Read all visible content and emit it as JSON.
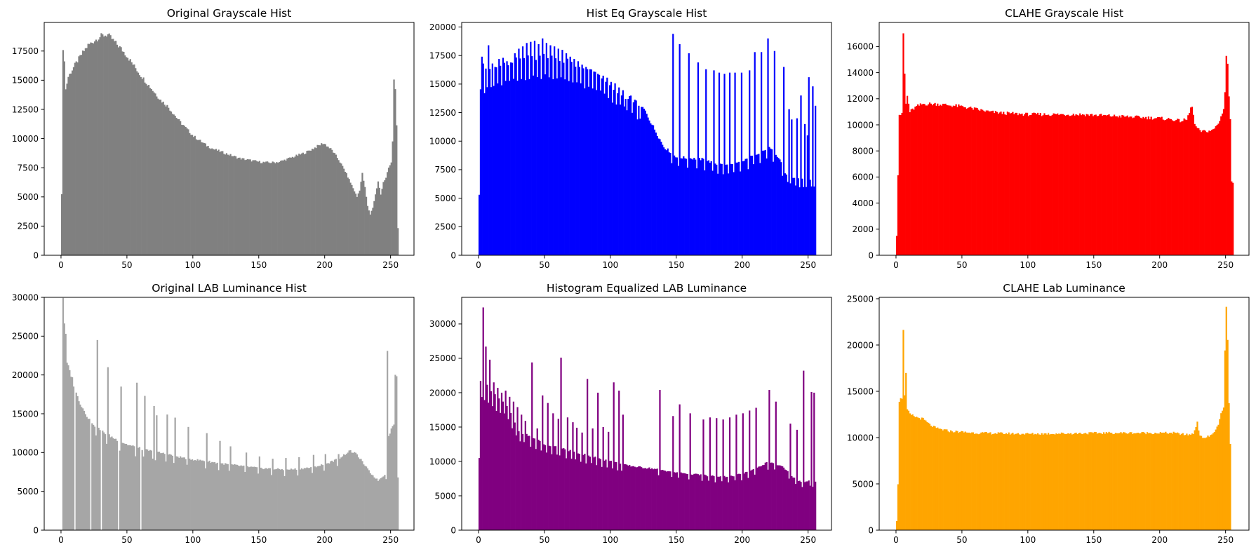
{
  "chart_data": [
    {
      "type": "bar",
      "title": "Original Grayscale Hist",
      "color": "#808080",
      "xlim": [
        -12.75,
        267.75
      ],
      "ylim": [
        0,
        19950
      ],
      "xticks": [
        0,
        50,
        100,
        150,
        200,
        250
      ],
      "yticks": [
        0,
        2500,
        5000,
        7500,
        10000,
        12500,
        15000,
        17500
      ],
      "x_anchors": [
        0,
        5300,
        1,
        17400,
        2,
        16800,
        3,
        14200,
        5,
        15300,
        10,
        16300,
        15,
        17200,
        20,
        18000,
        25,
        18400,
        30,
        18800,
        35,
        18900,
        40,
        18300,
        45,
        17700,
        50,
        17000,
        55,
        16200,
        60,
        15400,
        65,
        14700,
        70,
        14000,
        75,
        13300,
        80,
        12800,
        85,
        12100,
        90,
        11400,
        95,
        10800,
        100,
        10200,
        105,
        9800,
        110,
        9400,
        115,
        9100,
        120,
        8900,
        125,
        8700,
        130,
        8500,
        135,
        8300,
        140,
        8200,
        145,
        8100,
        150,
        8000,
        155,
        7950,
        160,
        7950,
        165,
        8000,
        170,
        8200,
        175,
        8400,
        180,
        8600,
        185,
        8800,
        190,
        9100,
        195,
        9400,
        198,
        9600,
        200,
        9500,
        205,
        9000,
        210,
        8200,
        215,
        7200,
        220,
        6000,
        224,
        5000,
        226,
        5600,
        228,
        7000,
        230,
        5800,
        232,
        4200,
        234,
        3500,
        236,
        4100,
        238,
        5200,
        240,
        6300,
        242,
        5200,
        244,
        6300,
        246,
        6600,
        248,
        7500,
        250,
        7900,
        251,
        9800,
        252,
        15000,
        253,
        14400,
        254,
        11000,
        255,
        2300
      ],
      "spikes": []
    },
    {
      "type": "bar",
      "title": "Hist Eq Grayscale Hist",
      "color": "#0000ff",
      "xlim": [
        -12.75,
        267.75
      ],
      "ylim": [
        0,
        20400
      ],
      "xticks": [
        0,
        50,
        100,
        150,
        200,
        250
      ],
      "yticks": [
        0,
        2500,
        5000,
        7500,
        10000,
        12500,
        15000,
        17500,
        20000
      ],
      "x_anchors": [
        0,
        16000,
        30,
        17200,
        50,
        17400,
        70,
        16900,
        90,
        16000,
        110,
        14300,
        125,
        12800,
        140,
        9500,
        150,
        8600,
        160,
        8500,
        170,
        8400,
        180,
        8000,
        190,
        7900,
        200,
        8200,
        210,
        8900,
        220,
        9400,
        228,
        8400,
        232,
        7200,
        240,
        6700,
        255,
        6700
      ],
      "spikes": [
        [
          0,
          5300
        ],
        [
          2,
          17400
        ],
        [
          3,
          16800
        ],
        [
          4,
          14200
        ],
        [
          7,
          18400
        ],
        [
          10,
          16800
        ],
        [
          12,
          16500
        ],
        [
          15,
          17200
        ],
        [
          18,
          17300
        ],
        [
          21,
          17000
        ],
        [
          24,
          16900
        ],
        [
          27,
          17700
        ],
        [
          30,
          18100
        ],
        [
          33,
          18300
        ],
        [
          36,
          18600
        ],
        [
          39,
          18700
        ],
        [
          42,
          18800
        ],
        [
          45,
          18500
        ],
        [
          48,
          19000
        ],
        [
          51,
          18600
        ],
        [
          54,
          18400
        ],
        [
          57,
          18300
        ],
        [
          60,
          18100
        ],
        [
          63,
          18000
        ],
        [
          66,
          17700
        ],
        [
          69,
          17400
        ],
        [
          72,
          17200
        ],
        [
          75,
          17000
        ],
        [
          78,
          16700
        ],
        [
          81,
          16500
        ],
        [
          84,
          16300
        ],
        [
          87,
          16100
        ],
        [
          90,
          15900
        ],
        [
          93,
          15500
        ],
        [
          96,
          15200
        ],
        [
          99,
          14900
        ],
        [
          102,
          14500
        ],
        [
          105,
          14200
        ],
        [
          108,
          14000
        ],
        [
          111,
          13700
        ],
        [
          113,
          13700
        ],
        [
          117,
          13400
        ],
        [
          121,
          13100
        ],
        [
          123,
          13000
        ],
        [
          147,
          19400
        ],
        [
          152,
          18500
        ],
        [
          159,
          17700
        ],
        [
          166,
          16900
        ],
        [
          172,
          16300
        ],
        [
          178,
          16200
        ],
        [
          182,
          16000
        ],
        [
          186,
          15900
        ],
        [
          190,
          16000
        ],
        [
          194,
          16000
        ],
        [
          199,
          16000
        ],
        [
          205,
          16200
        ],
        [
          209,
          17800
        ],
        [
          214,
          17800
        ],
        [
          219,
          19000
        ],
        [
          224,
          17900
        ],
        [
          231,
          16500
        ],
        [
          235,
          12800
        ],
        [
          237,
          11900
        ],
        [
          241,
          12000
        ],
        [
          244,
          14000
        ],
        [
          247,
          11500
        ],
        [
          249,
          10500
        ],
        [
          250,
          15600
        ],
        [
          253,
          14800
        ],
        [
          255,
          13100
        ]
      ]
    },
    {
      "type": "bar",
      "title": "CLAHE Grayscale Hist",
      "color": "#ff0000",
      "xlim": [
        -12.75,
        267.75
      ],
      "ylim": [
        0,
        17850
      ],
      "xticks": [
        0,
        50,
        100,
        150,
        200,
        250
      ],
      "yticks": [
        0,
        2000,
        4000,
        6000,
        8000,
        10000,
        12000,
        14000,
        16000
      ],
      "x_anchors": [
        0,
        1500,
        1,
        6200,
        2,
        10800,
        4,
        10800,
        5,
        17000,
        6,
        13900,
        7,
        11600,
        8,
        12200,
        10,
        11000,
        15,
        11400,
        20,
        11600,
        30,
        11600,
        40,
        11500,
        50,
        11400,
        60,
        11200,
        70,
        11000,
        80,
        10900,
        100,
        10800,
        120,
        10800,
        140,
        10800,
        160,
        10700,
        180,
        10600,
        200,
        10500,
        210,
        10400,
        215,
        10300,
        220,
        10400,
        224,
        11500,
        226,
        10000,
        230,
        9500,
        235,
        9500,
        240,
        9600,
        244,
        10100,
        246,
        10600,
        248,
        11300,
        249,
        12500,
        250,
        15300,
        251,
        14700,
        252,
        12100,
        253,
        10500,
        254,
        5600,
        255,
        5600
      ],
      "spikes": []
    },
    {
      "type": "bar",
      "title": "Original LAB Luminance Hist",
      "color": "#a6a6a6",
      "xlim": [
        -12.75,
        267.75
      ],
      "ylim": [
        0,
        30000
      ],
      "xticks": [
        0,
        50,
        100,
        150,
        200,
        250
      ],
      "yticks": [
        0,
        5000,
        10000,
        15000,
        20000,
        25000,
        30000
      ],
      "x_anchors": [
        0,
        10500,
        1,
        30000,
        2,
        26800,
        3,
        25000,
        4,
        21500,
        6,
        20500,
        8,
        19500,
        10,
        18000,
        15,
        16000,
        20,
        14500,
        25,
        13500,
        30,
        12800,
        35,
        12300,
        40,
        11800,
        50,
        11000,
        60,
        10500,
        70,
        10100,
        80,
        9800,
        90,
        9400,
        100,
        9100,
        110,
        8900,
        120,
        8600,
        130,
        8400,
        140,
        8200,
        150,
        8000,
        160,
        7900,
        170,
        7800,
        180,
        7900,
        190,
        8100,
        200,
        8500,
        210,
        9200,
        215,
        9800,
        218,
        10200,
        222,
        10000,
        226,
        9300,
        230,
        8300,
        235,
        7200,
        240,
        6400,
        244,
        7000,
        246,
        7400,
        248,
        12200,
        250,
        13000,
        252,
        13800,
        253,
        19800,
        254,
        20000,
        255,
        6700
      ],
      "spikes": [
        [
          27,
          24500
        ],
        [
          35,
          21000
        ],
        [
          45,
          18500
        ],
        [
          57,
          19000
        ],
        [
          63,
          17300
        ],
        [
          70,
          16000
        ],
        [
          72,
          14800
        ],
        [
          80,
          14900
        ],
        [
          86,
          14500
        ],
        [
          96,
          13300
        ],
        [
          110,
          12500
        ],
        [
          120,
          11500
        ],
        [
          128,
          10800
        ],
        [
          140,
          10000
        ],
        [
          150,
          9500
        ],
        [
          160,
          9200
        ],
        [
          170,
          9300
        ],
        [
          180,
          9400
        ],
        [
          191,
          9700
        ],
        [
          200,
          9800
        ],
        [
          210,
          9800
        ],
        [
          247,
          23100
        ]
      ],
      "gaps": [
        [
          0,
          1
        ],
        [
          10,
          11
        ],
        [
          22,
          23
        ],
        [
          30,
          31
        ],
        [
          43,
          44
        ],
        [
          60,
          61
        ]
      ]
    },
    {
      "type": "bar",
      "title": "Histogram Equalized LAB Luminance",
      "color": "#800080",
      "xlim": [
        -12.75,
        267.75
      ],
      "ylim": [
        0,
        33870
      ],
      "xticks": [
        0,
        50,
        100,
        150,
        200,
        250
      ],
      "yticks": [
        0,
        5000,
        10000,
        15000,
        20000,
        25000,
        30000
      ],
      "x_anchors": [
        3,
        21500,
        10,
        20000,
        20,
        18500,
        30,
        14500,
        40,
        13500,
        50,
        12500,
        60,
        12000,
        70,
        11500,
        80,
        11000,
        90,
        10500,
        100,
        10000,
        110,
        9500,
        120,
        9200,
        130,
        9000,
        140,
        8700,
        150,
        8400,
        160,
        8200,
        170,
        8000,
        180,
        7800,
        190,
        7800,
        200,
        8200,
        210,
        9000,
        220,
        10000,
        230,
        9200,
        240,
        7400,
        245,
        7000,
        250,
        7200,
        255,
        7000
      ],
      "spikes": [
        [
          0,
          10500
        ],
        [
          3,
          32400
        ],
        [
          5,
          26700
        ],
        [
          8,
          24800
        ],
        [
          11,
          21500
        ],
        [
          14,
          20700
        ],
        [
          17,
          20000
        ],
        [
          20,
          20300
        ],
        [
          23,
          19400
        ],
        [
          26,
          18700
        ],
        [
          29,
          17900
        ],
        [
          32,
          16800
        ],
        [
          35,
          15900
        ],
        [
          40,
          24400
        ],
        [
          44,
          14800
        ],
        [
          48,
          19600
        ],
        [
          52,
          18500
        ],
        [
          56,
          17000
        ],
        [
          60,
          16200
        ],
        [
          62,
          25100
        ],
        [
          67,
          16400
        ],
        [
          71,
          15700
        ],
        [
          74,
          14900
        ],
        [
          78,
          14200
        ],
        [
          82,
          22000
        ],
        [
          86,
          14800
        ],
        [
          90,
          20000
        ],
        [
          94,
          15000
        ],
        [
          98,
          14300
        ],
        [
          102,
          21500
        ],
        [
          106,
          20300
        ],
        [
          109,
          16800
        ],
        [
          137,
          20400
        ],
        [
          147,
          16600
        ],
        [
          152,
          18300
        ],
        [
          160,
          17000
        ],
        [
          170,
          16100
        ],
        [
          175,
          16400
        ],
        [
          180,
          16300
        ],
        [
          185,
          16100
        ],
        [
          190,
          16400
        ],
        [
          195,
          16800
        ],
        [
          200,
          17000
        ],
        [
          205,
          17400
        ],
        [
          210,
          17800
        ],
        [
          220,
          20400
        ],
        [
          225,
          18700
        ],
        [
          236,
          15500
        ],
        [
          241,
          14600
        ],
        [
          246,
          23200
        ],
        [
          252,
          20100
        ],
        [
          254,
          20000
        ]
      ]
    },
    {
      "type": "bar",
      "title": "CLAHE Lab Luminance",
      "color": "#ffa500",
      "xlim": [
        -12.75,
        267.75
      ],
      "ylim": [
        0,
        25150
      ],
      "xticks": [
        0,
        50,
        100,
        150,
        200,
        250
      ],
      "yticks": [
        0,
        5000,
        10000,
        15000,
        20000,
        25000
      ],
      "x_anchors": [
        0,
        1000,
        1,
        5000,
        2,
        14000,
        4,
        14300,
        5,
        21800,
        6,
        14500,
        7,
        16800,
        8,
        13000,
        10,
        12500,
        15,
        12200,
        20,
        12000,
        25,
        11400,
        30,
        11000,
        40,
        10700,
        60,
        10500,
        80,
        10450,
        100,
        10400,
        130,
        10450,
        160,
        10500,
        190,
        10500,
        210,
        10500,
        220,
        10300,
        225,
        10400,
        228,
        11700,
        230,
        10100,
        234,
        10000,
        238,
        10200,
        242,
        10800,
        244,
        11500,
        246,
        12500,
        248,
        13200,
        249,
        19200,
        250,
        24000,
        251,
        20500,
        252,
        13800,
        253,
        9300,
        254,
        0,
        255,
        0
      ],
      "spikes": []
    }
  ]
}
